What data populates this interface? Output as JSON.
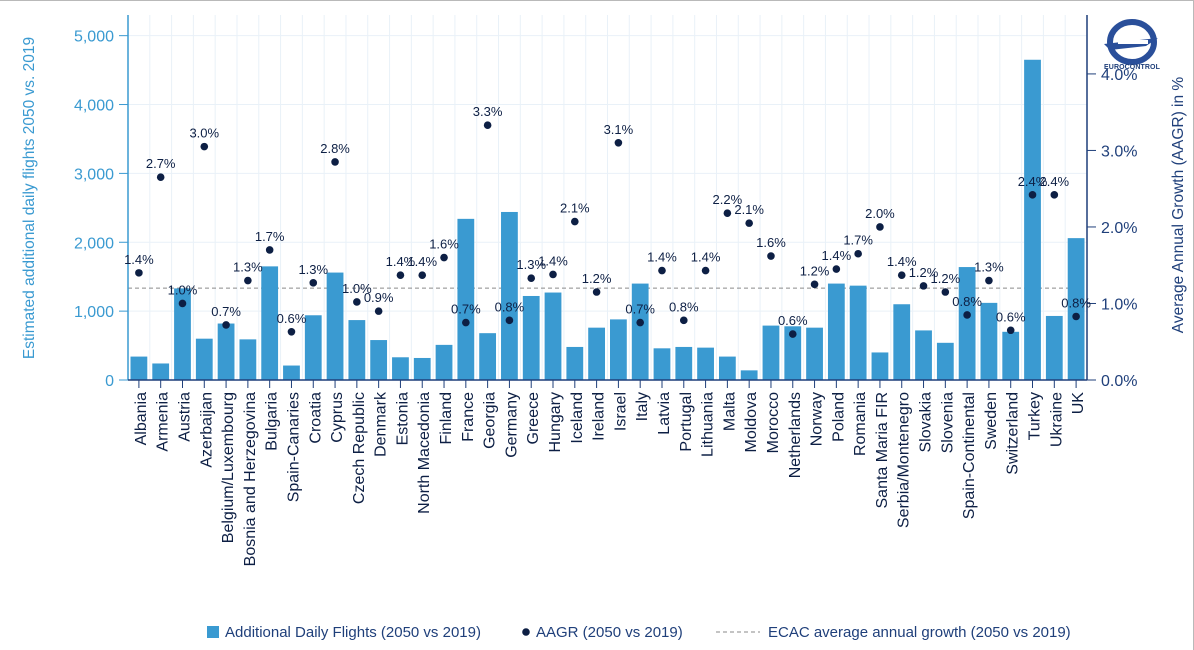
{
  "chart_data": {
    "type": "bar",
    "categories": [
      "Albania",
      "Armenia",
      "Austria",
      "Azerbaijan",
      "Belgium/Luxembourg",
      "Bosnia and Herzegovina",
      "Bulgaria",
      "Spain-Canaries",
      "Croatia",
      "Cyprus",
      "Czech Republic",
      "Denmark",
      "Estonia",
      "North Macedonia",
      "Finland",
      "France",
      "Georgia",
      "Germany",
      "Greece",
      "Hungary",
      "Iceland",
      "Ireland",
      "Israel",
      "Italy",
      "Latvia",
      "Portugal",
      "Lithuania",
      "Malta",
      "Moldova",
      "Morocco",
      "Netherlands",
      "Norway",
      "Poland",
      "Romania",
      "Santa Maria FIR",
      "Serbia/Montenegro",
      "Slovakia",
      "Slovenia",
      "Spain-Continental",
      "Sweden",
      "Switzerland",
      "Turkey",
      "Ukraine",
      "UK"
    ],
    "series": [
      {
        "name": "Additional Daily Flights (2050 vs 2019)",
        "axis": "left",
        "color": "#3a9ad1",
        "values": [
          340,
          240,
          1330,
          600,
          820,
          590,
          1650,
          210,
          940,
          1560,
          870,
          580,
          330,
          320,
          510,
          2340,
          680,
          2440,
          1220,
          1270,
          480,
          760,
          880,
          1400,
          460,
          480,
          470,
          340,
          140,
          790,
          780,
          760,
          1400,
          1370,
          400,
          1100,
          720,
          540,
          1640,
          1120,
          700,
          4650,
          930,
          2060
        ]
      },
      {
        "name": "AAGR (2050 vs 2019)",
        "axis": "right",
        "color": "#0d1f44",
        "values": [
          1.4,
          2.65,
          1.0,
          3.05,
          0.72,
          1.3,
          1.7,
          0.63,
          1.27,
          2.85,
          1.02,
          0.9,
          1.37,
          1.37,
          1.6,
          0.75,
          3.33,
          0.78,
          1.33,
          1.38,
          2.07,
          1.15,
          3.1,
          0.75,
          1.43,
          0.78,
          1.43,
          2.18,
          2.05,
          1.62,
          0.6,
          1.25,
          1.45,
          1.65,
          2.0,
          1.37,
          1.23,
          1.15,
          0.85,
          1.3,
          0.65,
          2.42,
          2.42,
          0.83
        ],
        "labels": [
          "1.4%",
          "2.7%",
          "1.0%",
          "3.0%",
          "0.7%",
          "1.3%",
          "1.7%",
          "0.6%",
          "1.3%",
          "2.8%",
          "1.0%",
          "0.9%",
          "1.4%",
          "1.4%",
          "1.6%",
          "0.7%",
          "3.3%",
          "0.8%",
          "1.3%",
          "1.4%",
          "2.1%",
          "1.2%",
          "3.1%",
          "0.7%",
          "1.4%",
          "0.8%",
          "1.4%",
          "2.2%",
          "2.1%",
          "1.6%",
          "0.6%",
          "1.2%",
          "1.4%",
          "1.7%",
          "2.0%",
          "1.4%",
          "1.2%",
          "1.2%",
          "0.8%",
          "1.3%",
          "0.6%",
          "2.4%",
          "2.4%",
          "0.8%"
        ]
      }
    ],
    "ecac_average": {
      "name": "ECAC average annual growth (2050 vs 2019)",
      "value": 1.2,
      "axis": "right",
      "color": "#8a8a8a"
    },
    "y_left": {
      "label": "Estimated additional daily flights 2050 vs. 2019",
      "ticks": [
        "0",
        "1,000",
        "2,000",
        "3,000",
        "4,000",
        "5,000"
      ],
      "lim": [
        0,
        5300
      ],
      "color": "#3a9ad1"
    },
    "y_right": {
      "label": "Average Annual Growth (AAGR) in %",
      "ticks": [
        "0.0%",
        "1.0%",
        "2.0%",
        "3.0%",
        "4.0%"
      ],
      "lim": [
        0,
        4.77
      ],
      "color": "#1f3f7a"
    },
    "grid": true,
    "legend_position": "bottom"
  },
  "logo_text": "EUROCONTROL"
}
